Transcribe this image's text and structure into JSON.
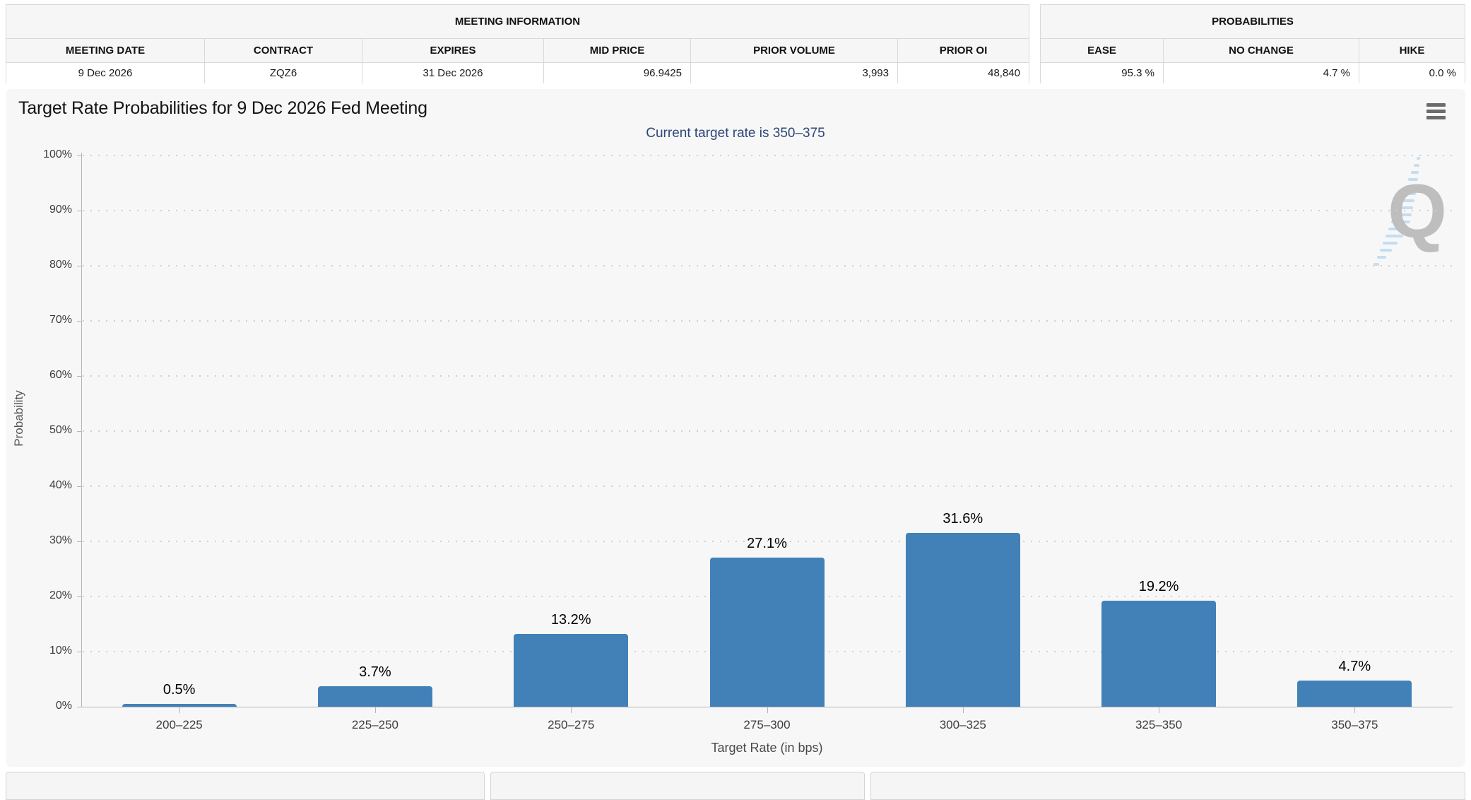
{
  "meeting_info": {
    "title": "MEETING INFORMATION",
    "headers": [
      "MEETING DATE",
      "CONTRACT",
      "EXPIRES",
      "MID PRICE",
      "PRIOR VOLUME",
      "PRIOR OI"
    ],
    "values": [
      "9 Dec 2026",
      "ZQZ6",
      "31 Dec 2026",
      "96.9425",
      "3,993",
      "48,840"
    ]
  },
  "probabilities": {
    "title": "PROBABILITIES",
    "headers": [
      "EASE",
      "NO CHANGE",
      "HIKE"
    ],
    "values": [
      "95.3 %",
      "4.7 %",
      "0.0 %"
    ]
  },
  "chart": {
    "title": "Target Rate Probabilities for 9 Dec 2026 Fed Meeting",
    "subtitle": "Current target rate is 350–375",
    "menu_icon": "hamburger-icon",
    "watermark_letter": "Q"
  },
  "chart_data": {
    "type": "bar",
    "title": "Target Rate Probabilities for 9 Dec 2026 Fed Meeting",
    "subtitle": "Current target rate is 350–375",
    "categories": [
      "200–225",
      "225–250",
      "250–275",
      "275–300",
      "300–325",
      "325–350",
      "350–375"
    ],
    "values": [
      0.5,
      3.7,
      13.2,
      27.1,
      31.6,
      19.2,
      4.7
    ],
    "value_labels": [
      "0.5%",
      "3.7%",
      "13.2%",
      "27.1%",
      "31.6%",
      "19.2%",
      "4.7%"
    ],
    "xlabel": "Target Rate (in bps)",
    "ylabel": "Probability",
    "ylim": [
      0,
      100
    ],
    "ytick_step": 10,
    "ytick_labels": [
      "0%",
      "10%",
      "20%",
      "30%",
      "40%",
      "50%",
      "60%",
      "70%",
      "80%",
      "90%",
      "100%"
    ],
    "bar_color": "#4281b8",
    "grid": "dotted-horizontal",
    "legend": "none"
  }
}
